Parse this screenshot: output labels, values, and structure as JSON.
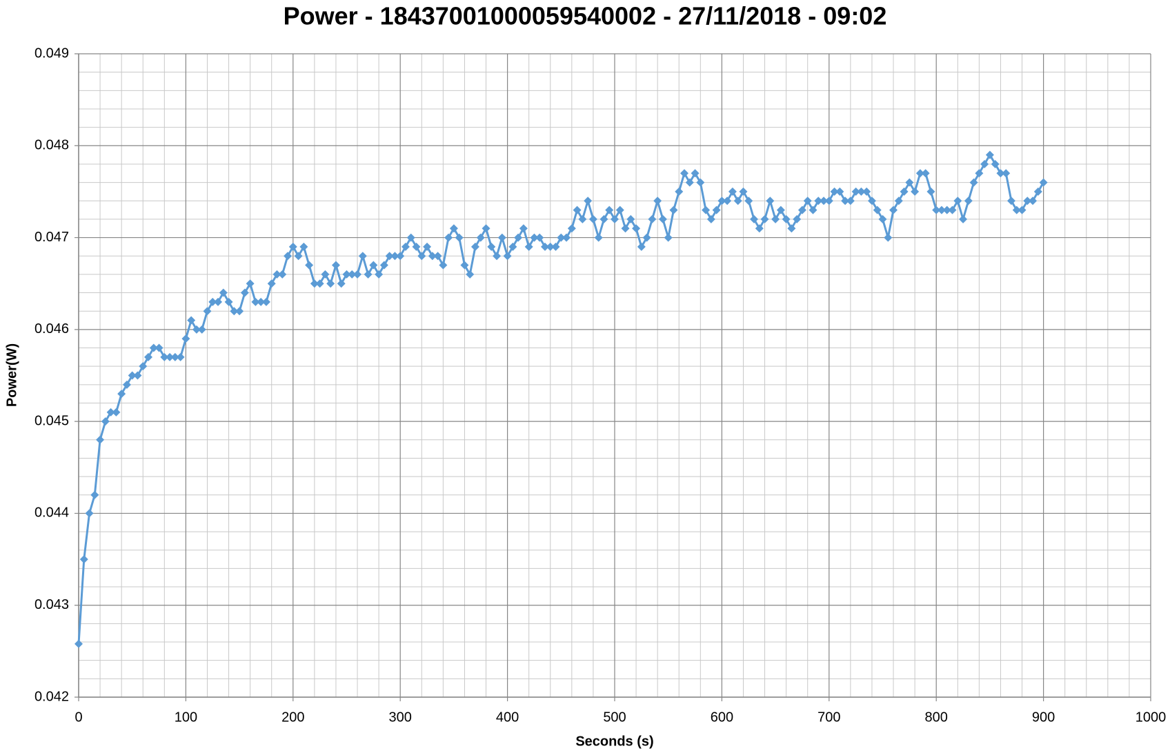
{
  "chart_data": {
    "type": "line",
    "title": "Power - 18437001000059540002 - 27/11/2018 - 09:02",
    "x_label": "Seconds (s)",
    "y_label": "Power(W)",
    "color": "#5b9bd5",
    "grid": true,
    "minor_grid": true,
    "markers": "diamond",
    "xlim": [
      0,
      1000
    ],
    "xticks": [
      0,
      100,
      200,
      300,
      400,
      500,
      600,
      700,
      800,
      900,
      1000
    ],
    "ylim": [
      0.042,
      0.049
    ],
    "yticks": [
      0.042,
      0.043,
      0.044,
      0.045,
      0.046,
      0.047,
      0.048,
      0.049
    ],
    "x": [
      0,
      5,
      10,
      15,
      20,
      25,
      30,
      35,
      40,
      45,
      50,
      55,
      60,
      65,
      70,
      75,
      80,
      85,
      90,
      95,
      100,
      105,
      110,
      115,
      120,
      125,
      130,
      135,
      140,
      145,
      150,
      155,
      160,
      165,
      170,
      175,
      180,
      185,
      190,
      195,
      200,
      205,
      210,
      215,
      220,
      225,
      230,
      235,
      240,
      245,
      250,
      255,
      260,
      265,
      270,
      275,
      280,
      285,
      290,
      295,
      300,
      305,
      310,
      315,
      320,
      325,
      330,
      335,
      340,
      345,
      350,
      355,
      360,
      365,
      370,
      375,
      380,
      385,
      390,
      395,
      400,
      405,
      410,
      415,
      420,
      425,
      430,
      435,
      440,
      445,
      450,
      455,
      460,
      465,
      470,
      475,
      480,
      485,
      490,
      495,
      500,
      505,
      510,
      515,
      520,
      525,
      530,
      535,
      540,
      545,
      550,
      555,
      560,
      565,
      570,
      575,
      580,
      585,
      590,
      595,
      600,
      605,
      610,
      615,
      620,
      625,
      630,
      635,
      640,
      645,
      650,
      655,
      660,
      665,
      670,
      675,
      680,
      685,
      690,
      695,
      700,
      705,
      710,
      715,
      720,
      725,
      730,
      735,
      740,
      745,
      750,
      755,
      760,
      765,
      770,
      775,
      780,
      785,
      790,
      795,
      800,
      805,
      810,
      815,
      820,
      825,
      830,
      835,
      840,
      845,
      850,
      855,
      860,
      865,
      870,
      875,
      880,
      885,
      890,
      895,
      900
    ],
    "values": [
      0.04258,
      0.0435,
      0.044,
      0.0442,
      0.0448,
      0.045,
      0.0451,
      0.0451,
      0.0453,
      0.0454,
      0.0455,
      0.0455,
      0.0456,
      0.0457,
      0.0458,
      0.0458,
      0.0457,
      0.0457,
      0.0457,
      0.0457,
      0.0459,
      0.0461,
      0.046,
      0.046,
      0.0462,
      0.0463,
      0.0463,
      0.0464,
      0.0463,
      0.0462,
      0.0462,
      0.0464,
      0.0465,
      0.0463,
      0.0463,
      0.0463,
      0.0465,
      0.0466,
      0.0466,
      0.0468,
      0.0469,
      0.0468,
      0.0469,
      0.0467,
      0.0465,
      0.0465,
      0.0466,
      0.0465,
      0.0467,
      0.0465,
      0.0466,
      0.0466,
      0.0466,
      0.0468,
      0.0466,
      0.0467,
      0.0466,
      0.0467,
      0.0468,
      0.0468,
      0.0468,
      0.0469,
      0.047,
      0.0469,
      0.0468,
      0.0469,
      0.0468,
      0.0468,
      0.0467,
      0.047,
      0.0471,
      0.047,
      0.0467,
      0.0466,
      0.0469,
      0.047,
      0.0471,
      0.0469,
      0.0468,
      0.047,
      0.0468,
      0.0469,
      0.047,
      0.0471,
      0.0469,
      0.047,
      0.047,
      0.0469,
      0.0469,
      0.0469,
      0.047,
      0.047,
      0.0471,
      0.0473,
      0.0472,
      0.0474,
      0.0472,
      0.047,
      0.0472,
      0.0473,
      0.0472,
      0.0473,
      0.0471,
      0.0472,
      0.0471,
      0.0469,
      0.047,
      0.0472,
      0.0474,
      0.0472,
      0.047,
      0.0473,
      0.0475,
      0.0477,
      0.0476,
      0.0477,
      0.0476,
      0.0473,
      0.0472,
      0.0473,
      0.0474,
      0.0474,
      0.0475,
      0.0474,
      0.0475,
      0.0474,
      0.0472,
      0.0471,
      0.0472,
      0.0474,
      0.0472,
      0.0473,
      0.0472,
      0.0471,
      0.0472,
      0.0473,
      0.0474,
      0.0473,
      0.0474,
      0.0474,
      0.0474,
      0.0475,
      0.0475,
      0.0474,
      0.0474,
      0.0475,
      0.0475,
      0.0475,
      0.0474,
      0.0473,
      0.0472,
      0.047,
      0.0473,
      0.0474,
      0.0475,
      0.0476,
      0.0475,
      0.0477,
      0.0477,
      0.0475,
      0.0473,
      0.0473,
      0.0473,
      0.0473,
      0.0474,
      0.0472,
      0.0474,
      0.0476,
      0.0477,
      0.0478,
      0.0479,
      0.0478,
      0.0477,
      0.0477,
      0.0474,
      0.0473,
      0.0473,
      0.0474,
      0.0474,
      0.0475,
      0.0476
    ]
  }
}
